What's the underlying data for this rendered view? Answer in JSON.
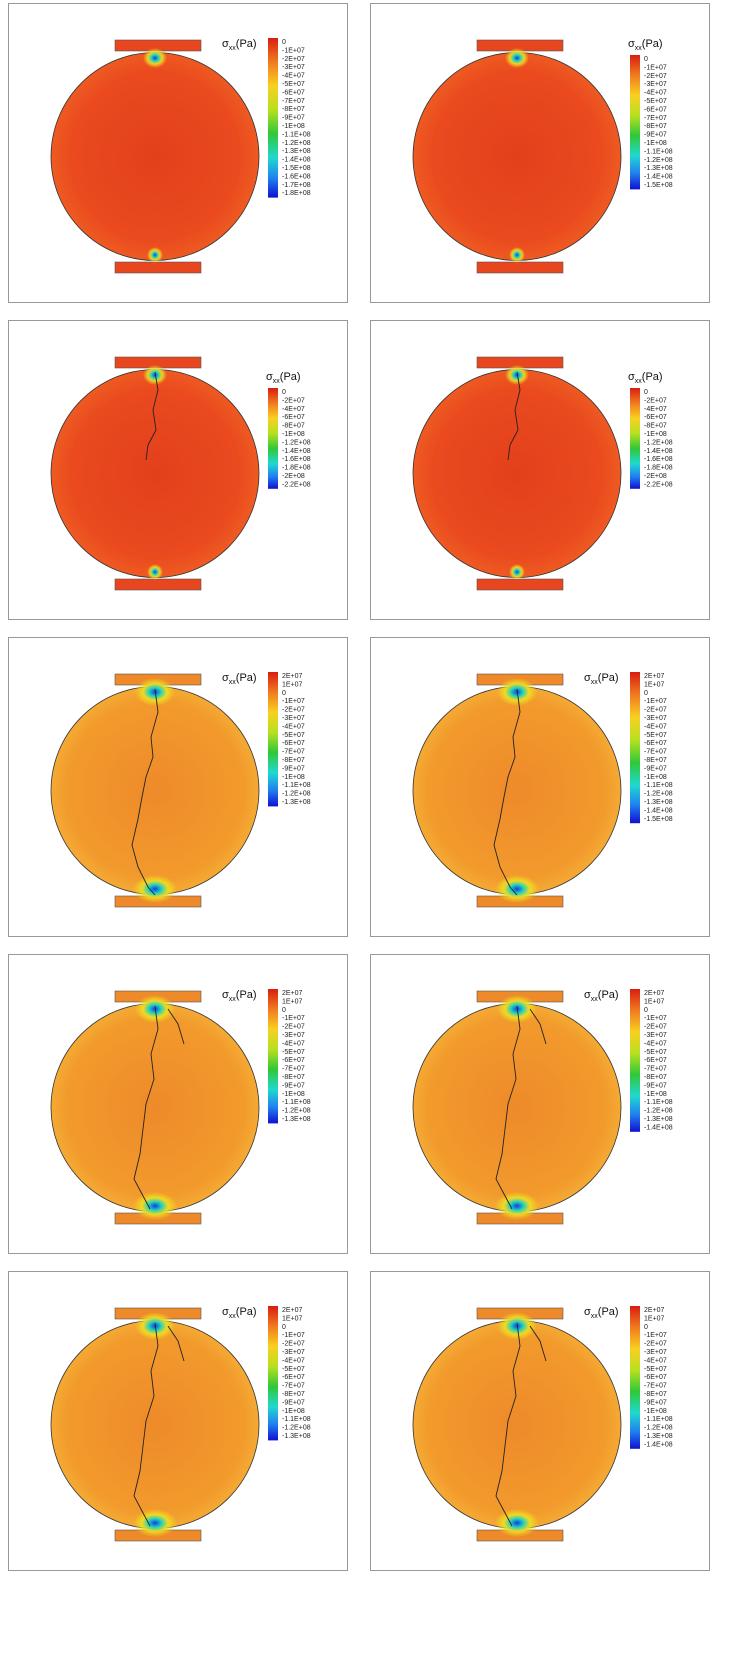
{
  "panels": [
    {
      "label": {
        "symbol": "σ",
        "sub": "xx",
        "unit": "(Pa)"
      },
      "legend": [
        "0",
        "-1E+07",
        "-2E+07",
        "-3E+07",
        "-4E+07",
        "-5E+07",
        "-6E+07",
        "-7E+07",
        "-8E+07",
        "-9E+07",
        "-1E+08",
        "-1.1E+08",
        "-1.2E+08",
        "-1.3E+08",
        "-1.4E+08",
        "-1.5E+08",
        "-1.6E+08",
        "-1.7E+08",
        "-1.8E+08"
      ]
    },
    {
      "label": {
        "symbol": "σ",
        "sub": "xx",
        "unit": "(Pa)"
      },
      "legend": [
        "0",
        "-1E+07",
        "-2E+07",
        "-3E+07",
        "-4E+07",
        "-5E+07",
        "-6E+07",
        "-7E+07",
        "-8E+07",
        "-9E+07",
        "-1E+08",
        "-1.1E+08",
        "-1.2E+08",
        "-1.3E+08",
        "-1.4E+08",
        "-1.5E+08"
      ]
    },
    {
      "label": {
        "symbol": "σ",
        "sub": "xx",
        "unit": "(Pa)"
      },
      "legend": [
        "0",
        "-2E+07",
        "-4E+07",
        "-6E+07",
        "-8E+07",
        "-1E+08",
        "-1.2E+08",
        "-1.4E+08",
        "-1.6E+08",
        "-1.8E+08",
        "-2E+08",
        "-2.2E+08"
      ]
    },
    {
      "label": {
        "symbol": "σ",
        "sub": "xx",
        "unit": "(Pa)"
      },
      "legend": [
        "0",
        "-2E+07",
        "-4E+07",
        "-6E+07",
        "-8E+07",
        "-1E+08",
        "-1.2E+08",
        "-1.4E+08",
        "-1.6E+08",
        "-1.8E+08",
        "-2E+08",
        "-2.2E+08"
      ]
    },
    {
      "label": {
        "symbol": "σ",
        "sub": "xx",
        "unit": "(Pa)"
      },
      "legend": [
        "2E+07",
        "1E+07",
        "0",
        "-1E+07",
        "-2E+07",
        "-3E+07",
        "-4E+07",
        "-5E+07",
        "-6E+07",
        "-7E+07",
        "-8E+07",
        "-9E+07",
        "-1E+08",
        "-1.1E+08",
        "-1.2E+08",
        "-1.3E+08"
      ]
    },
    {
      "label": {
        "symbol": "σ",
        "sub": "xx",
        "unit": "(Pa)"
      },
      "legend": [
        "2E+07",
        "1E+07",
        "0",
        "-1E+07",
        "-2E+07",
        "-3E+07",
        "-4E+07",
        "-5E+07",
        "-6E+07",
        "-7E+07",
        "-8E+07",
        "-9E+07",
        "-1E+08",
        "-1.1E+08",
        "-1.2E+08",
        "-1.3E+08",
        "-1.4E+08",
        "-1.5E+08"
      ]
    },
    {
      "label": {
        "symbol": "σ",
        "sub": "xx",
        "unit": "(Pa)"
      },
      "legend": [
        "2E+07",
        "1E+07",
        "0",
        "-1E+07",
        "-2E+07",
        "-3E+07",
        "-4E+07",
        "-5E+07",
        "-6E+07",
        "-7E+07",
        "-8E+07",
        "-9E+07",
        "-1E+08",
        "-1.1E+08",
        "-1.2E+08",
        "-1.3E+08"
      ]
    },
    {
      "label": {
        "symbol": "σ",
        "sub": "xx",
        "unit": "(Pa)"
      },
      "legend": [
        "2E+07",
        "1E+07",
        "0",
        "-1E+07",
        "-2E+07",
        "-3E+07",
        "-4E+07",
        "-5E+07",
        "-6E+07",
        "-7E+07",
        "-8E+07",
        "-9E+07",
        "-1E+08",
        "-1.1E+08",
        "-1.2E+08",
        "-1.3E+08",
        "-1.4E+08"
      ]
    },
    {
      "label": {
        "symbol": "σ",
        "sub": "xx",
        "unit": "(Pa)"
      },
      "legend": [
        "2E+07",
        "1E+07",
        "0",
        "-1E+07",
        "-2E+07",
        "-3E+07",
        "-4E+07",
        "-5E+07",
        "-6E+07",
        "-7E+07",
        "-8E+07",
        "-9E+07",
        "-1E+08",
        "-1.1E+08",
        "-1.2E+08",
        "-1.3E+08"
      ]
    },
    {
      "label": {
        "symbol": "σ",
        "sub": "xx",
        "unit": "(Pa)"
      },
      "legend": [
        "2E+07",
        "1E+07",
        "0",
        "-1E+07",
        "-2E+07",
        "-3E+07",
        "-4E+07",
        "-5E+07",
        "-6E+07",
        "-7E+07",
        "-8E+07",
        "-9E+07",
        "-1E+08",
        "-1.1E+08",
        "-1.2E+08",
        "-1.3E+08",
        "-1.4E+08"
      ]
    }
  ]
}
